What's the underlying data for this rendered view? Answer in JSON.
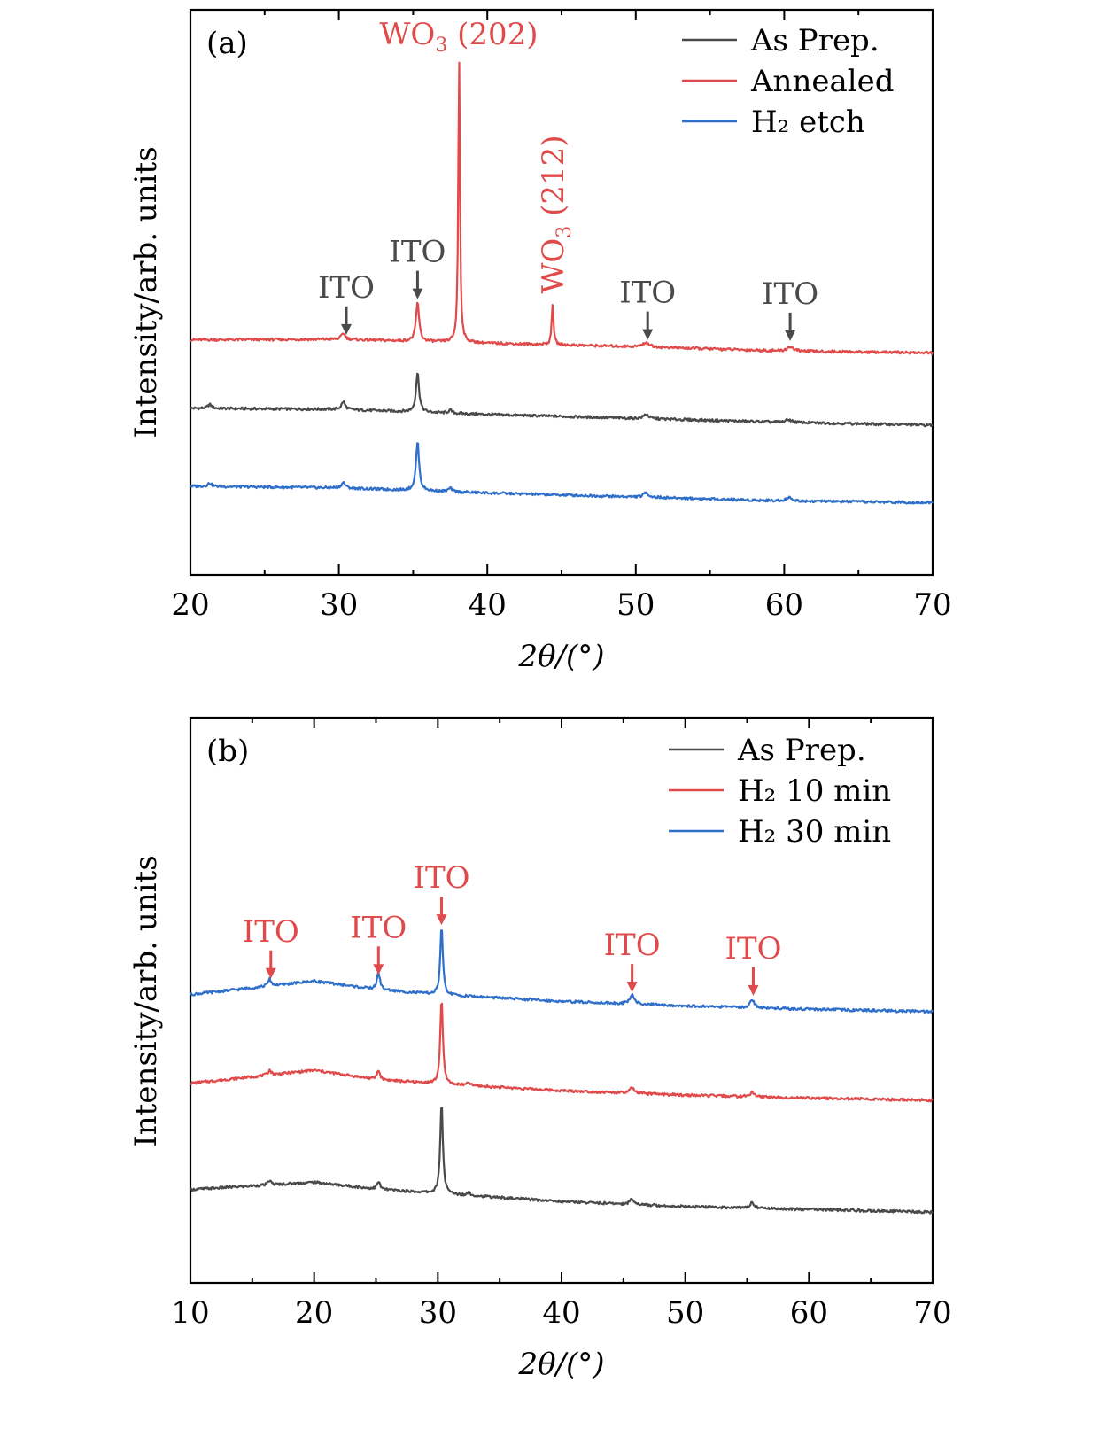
{
  "chart_data": [
    {
      "type": "line",
      "panel_label": "(a)",
      "xlabel": "2θ/(°)",
      "ylabel": "Intensity/arb. units",
      "xlim": [
        20,
        70
      ],
      "ylim": [
        0,
        100
      ],
      "x_ticks": [
        20,
        30,
        40,
        50,
        60,
        70
      ],
      "legend_position": "top-right",
      "series": [
        {
          "name": "As Prep.",
          "color": "#4a4a4a",
          "baseline": [
            [
              20,
              29.5
            ],
            [
              30,
              29.3
            ],
            [
              40,
              28.4
            ],
            [
              50,
              27.7
            ],
            [
              60,
              27.0
            ],
            [
              70,
              26.5
            ]
          ],
          "peaks": [
            [
              21.3,
              0.7,
              0.3
            ],
            [
              30.3,
              1.4,
              0.3
            ],
            [
              35.3,
              7.0,
              0.25
            ],
            [
              37.5,
              0.5,
              0.3
            ],
            [
              50.7,
              0.8,
              0.4
            ],
            [
              60.3,
              0.5,
              0.5
            ]
          ]
        },
        {
          "name": "Annealed",
          "color": "#e04a4a",
          "baseline": [
            [
              20,
              41.6
            ],
            [
              30,
              41.7
            ],
            [
              40,
              41.0
            ],
            [
              50,
              40.4
            ],
            [
              60,
              39.6
            ],
            [
              70,
              39.3
            ]
          ],
          "peaks": [
            [
              30.3,
              1.1,
              0.3
            ],
            [
              35.3,
              6.9,
              0.25
            ],
            [
              38.1,
              51.0,
              0.13
            ],
            [
              44.4,
              7.2,
              0.15
            ],
            [
              50.7,
              0.8,
              0.5
            ],
            [
              60.4,
              0.8,
              0.5
            ]
          ]
        },
        {
          "name": "H₂ etch",
          "color": "#2f6fca",
          "baseline": [
            [
              20,
              15.7
            ],
            [
              30,
              15.4
            ],
            [
              40,
              14.5
            ],
            [
              50,
              13.8
            ],
            [
              60,
              13.1
            ],
            [
              70,
              12.8
            ]
          ],
          "peaks": [
            [
              21.3,
              0.6,
              0.3
            ],
            [
              30.3,
              1.0,
              0.3
            ],
            [
              35.3,
              8.7,
              0.25
            ],
            [
              37.5,
              0.6,
              0.3
            ],
            [
              50.7,
              0.8,
              0.4
            ],
            [
              60.3,
              0.6,
              0.5
            ]
          ]
        }
      ],
      "annotations": [
        {
          "text": "ITO",
          "x": 30.5,
          "y": 42.5,
          "color": "#4a4a4a",
          "arrow": true
        },
        {
          "text": "ITO",
          "x": 35.3,
          "y": 48.8,
          "color": "#4a4a4a",
          "arrow": true
        },
        {
          "text": "ITO",
          "x": 50.8,
          "y": 41.6,
          "color": "#4a4a4a",
          "arrow": true
        },
        {
          "text": "ITO",
          "x": 60.4,
          "y": 41.4,
          "color": "#4a4a4a",
          "arrow": true
        }
      ],
      "wo3_labels": [
        {
          "main": "WO",
          "sub": "3",
          "tail": " (202)",
          "color": "#e04a4a"
        },
        {
          "main": "WO",
          "sub": "3",
          "tail": " (212)",
          "color": "#e04a4a"
        }
      ]
    },
    {
      "type": "line",
      "panel_label": "(b)",
      "xlabel": "2θ/(°)",
      "ylabel": "Intensity/arb. units",
      "xlim": [
        10,
        70
      ],
      "ylim": [
        0,
        100
      ],
      "x_ticks": [
        10,
        20,
        30,
        40,
        50,
        60,
        70
      ],
      "legend_position": "top-right",
      "series": [
        {
          "name": "As Prep.",
          "color": "#4a4a4a",
          "baseline": [
            [
              10,
              16.5
            ],
            [
              20,
              17.8
            ],
            [
              25,
              16.6
            ],
            [
              30,
              15.8
            ],
            [
              40,
              14.4
            ],
            [
              50,
              13.5
            ],
            [
              60,
              13.0
            ],
            [
              70,
              12.5
            ]
          ],
          "peaks": [
            [
              16.4,
              0.8,
              0.3
            ],
            [
              25.2,
              1.3,
              0.3
            ],
            [
              30.3,
              16.2,
              0.25
            ],
            [
              32.5,
              0.6,
              0.3
            ],
            [
              45.7,
              1.0,
              0.4
            ],
            [
              55.4,
              1.0,
              0.4
            ]
          ]
        },
        {
          "name": "H₂ 10 min",
          "color": "#e04a4a",
          "baseline": [
            [
              10,
              35.3
            ],
            [
              20,
              37.6
            ],
            [
              25,
              36.0
            ],
            [
              30,
              35.2
            ],
            [
              40,
              34.0
            ],
            [
              50,
              33.2
            ],
            [
              60,
              32.7
            ],
            [
              70,
              32.3
            ]
          ],
          "peaks": [
            [
              16.4,
              0.9,
              0.3
            ],
            [
              25.2,
              1.6,
              0.3
            ],
            [
              30.3,
              15.0,
              0.25
            ],
            [
              32.5,
              0.5,
              0.3
            ],
            [
              45.7,
              1.0,
              0.4
            ],
            [
              55.4,
              0.8,
              0.4
            ]
          ]
        },
        {
          "name": "H₂ 30 min",
          "color": "#2f6fca",
          "baseline": [
            [
              10,
              51.0
            ],
            [
              20,
              53.4
            ],
            [
              25,
              51.9
            ],
            [
              30,
              51.0
            ],
            [
              40,
              49.8
            ],
            [
              50,
              49.0
            ],
            [
              60,
              48.4
            ],
            [
              70,
              48.0
            ]
          ],
          "peaks": [
            [
              16.4,
              1.2,
              0.3
            ],
            [
              25.2,
              3.0,
              0.3
            ],
            [
              30.3,
              12.0,
              0.25
            ],
            [
              45.7,
              1.8,
              0.4
            ],
            [
              55.4,
              1.5,
              0.4
            ]
          ]
        }
      ],
      "annotations": [
        {
          "text": "ITO",
          "x": 16.5,
          "y": 53.8,
          "color": "#e04a4a",
          "arrow": true
        },
        {
          "text": "ITO",
          "x": 25.2,
          "y": 54.5,
          "color": "#e04a4a",
          "arrow": true
        },
        {
          "text": "ITO",
          "x": 30.3,
          "y": 63.3,
          "color": "#e04a4a",
          "arrow": true
        },
        {
          "text": "ITO",
          "x": 45.7,
          "y": 51.4,
          "color": "#e04a4a",
          "arrow": true
        },
        {
          "text": "ITO",
          "x": 55.5,
          "y": 50.8,
          "color": "#e04a4a",
          "arrow": true
        }
      ]
    }
  ]
}
